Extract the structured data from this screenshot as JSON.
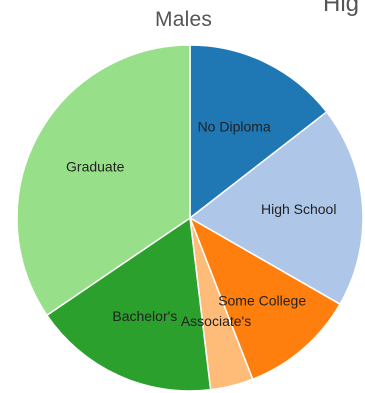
{
  "chart_data": {
    "type": "pie",
    "title": "Males",
    "title_fragment": "Hig",
    "slices": [
      {
        "label": "No Diploma",
        "value": 14.5,
        "color": "#1f77b4"
      },
      {
        "label": "High School",
        "value": 18.8,
        "color": "#aec7e8"
      },
      {
        "label": "Some College",
        "value": 10.8,
        "color": "#ff7f0e"
      },
      {
        "label": "Associate's",
        "value": 4.0,
        "color": "#ffbb78"
      },
      {
        "label": "Bachelor's",
        "value": 17.4,
        "color": "#2ca02c"
      },
      {
        "label": "Graduate",
        "value": 34.5,
        "color": "#98df8a"
      }
    ]
  }
}
